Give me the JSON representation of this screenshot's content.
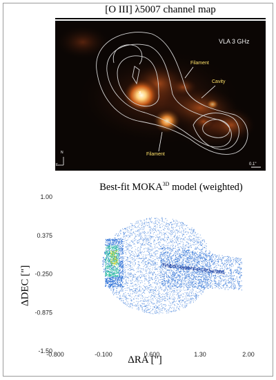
{
  "top_panel": {
    "title": "[O III] λ5007 channel map",
    "instrument_label": "VLA 3 GHz",
    "annotations": {
      "filament_upper": "Filament",
      "cavity": "Cavity",
      "filament_lower": "Filament",
      "nucleus_marker": "x"
    },
    "compass": {
      "north": "N",
      "east": "E"
    },
    "scale_bar": "0.1\""
  },
  "bottom_panel": {
    "title_prefix": "Best-fit MOKA",
    "title_sup": "3D",
    "title_suffix": " model (weighted)",
    "chart_data": {
      "type": "scatter",
      "title": "Best-fit MOKA3D model (weighted)",
      "xlabel": "ΔRA [\"]",
      "ylabel": "ΔDEC [\"]",
      "xlim": [
        -0.8,
        2.2
      ],
      "ylim": [
        -1.5,
        1.0
      ],
      "xticks": [
        "-0.800",
        "-0.100",
        "0.600",
        "1.30",
        "2.00"
      ],
      "yticks": [
        "1.00",
        "0.375",
        "-0.250",
        "-0.875",
        "-1.50"
      ],
      "colors": {
        "points": "#2a6fd6",
        "dense": "#1db89a",
        "peak": "#d6d62a"
      }
    }
  }
}
